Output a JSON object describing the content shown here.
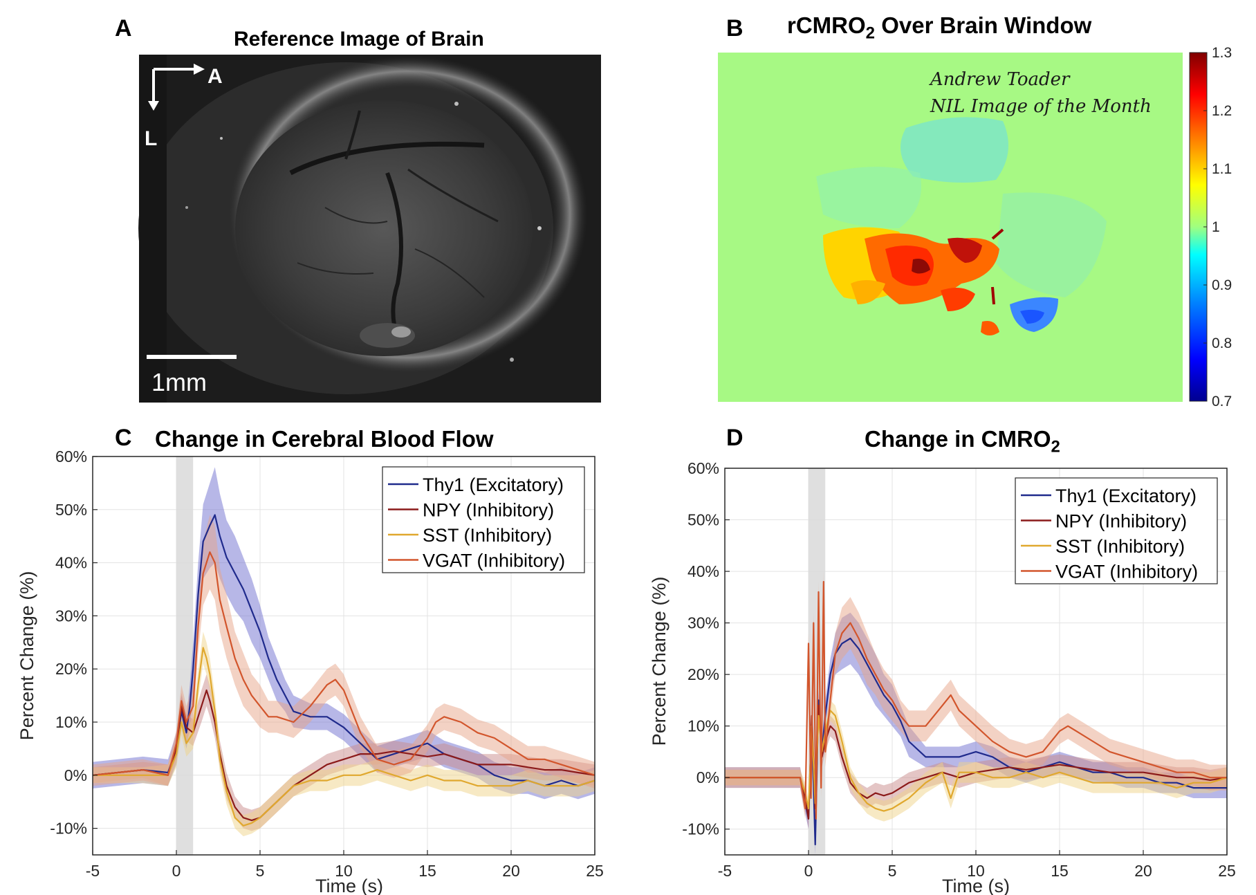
{
  "panels": {
    "a": {
      "letter": "A",
      "title": "Reference Image of Brain",
      "scale_bar": "1mm",
      "orientation": {
        "anterior": "A",
        "lateral": "L"
      }
    },
    "b": {
      "letter": "B",
      "title_main": "rCMRO",
      "title_sub": "2",
      "title_rest": " Over Brain Window",
      "annotation_line1": "Andrew Toader",
      "annotation_line2": "NIL Image of the Month",
      "colorbar": {
        "ticks": [
          "1.3",
          "1.2",
          "1.1",
          "1",
          "0.9",
          "0.8",
          "0.7"
        ],
        "range": [
          0.7,
          1.3
        ],
        "colors": [
          "#00008f",
          "#0000ff",
          "#0080ff",
          "#00ffff",
          "#a0ff80",
          "#ffff00",
          "#ff8000",
          "#ff0000",
          "#800000"
        ]
      }
    },
    "c": {
      "letter": "C"
    },
    "d": {
      "letter": "D"
    }
  },
  "chart_data": [
    {
      "type": "line",
      "title": "Change in Cerebral Blood Flow",
      "xlabel": "Time (s)",
      "ylabel": "Percent Change (%)",
      "xlim": [
        -5,
        25
      ],
      "ylim": [
        -15,
        60
      ],
      "xticks": [
        "-5",
        "0",
        "5",
        "10",
        "15",
        "20",
        "25"
      ],
      "yticks": [
        "-10%",
        "0%",
        "10%",
        "20%",
        "30%",
        "40%",
        "50%",
        "60%"
      ],
      "stimulus_window": [
        0,
        1
      ],
      "grid": true,
      "legend_position": "top-right",
      "series": [
        {
          "name": "Thy1 (Excitatory)",
          "color": "#1f2a8c",
          "band_color": "#6f6fd0",
          "x": [
            -5,
            -2,
            -0.5,
            0,
            0.3,
            0.6,
            0.8,
            1,
            1.3,
            1.6,
            2,
            2.3,
            2.6,
            3,
            3.5,
            4,
            4.5,
            5,
            5.5,
            6,
            6.5,
            7,
            8,
            9,
            10,
            11,
            12,
            13,
            14,
            15,
            16,
            17,
            18,
            19,
            20,
            21,
            22,
            23,
            24,
            25
          ],
          "y": [
            0,
            1,
            0.5,
            5,
            12,
            8,
            13,
            20,
            34,
            44,
            47,
            49,
            45,
            41,
            38,
            35,
            31,
            27,
            22,
            18,
            15,
            12,
            11,
            11,
            9,
            6,
            3,
            4,
            5,
            6,
            4,
            3,
            2,
            0,
            -1,
            -1,
            -2,
            -1,
            -2,
            -1
          ],
          "band": [
            2.5,
            2.5,
            2.5,
            3,
            3,
            3,
            4,
            5,
            6,
            7,
            8,
            9,
            8,
            7,
            7,
            6,
            6,
            5,
            4,
            4,
            3,
            3,
            2.5,
            2.5,
            2.5,
            2.5,
            2.5,
            2.5,
            2.5,
            2.5,
            2.5,
            2.5,
            2.5,
            2.5,
            2.5,
            2.5,
            2.5,
            2.5,
            2.5,
            2.5
          ]
        },
        {
          "name": "NPY (Inhibitory)",
          "color": "#8b1a1a",
          "band_color": "#c98b8b",
          "x": [
            -5,
            -2,
            -0.5,
            0,
            0.3,
            0.6,
            1,
            1.5,
            1.8,
            2,
            2.3,
            2.6,
            3,
            3.5,
            4,
            4.5,
            5,
            6,
            7,
            8,
            9,
            10,
            11,
            12,
            13,
            14,
            15,
            16,
            17,
            18,
            19,
            20,
            21,
            22,
            23,
            24,
            25
          ],
          "y": [
            0,
            1,
            0,
            5,
            13,
            9,
            8,
            13,
            16,
            14,
            10,
            4,
            -2,
            -6,
            -8,
            -8.5,
            -8,
            -5,
            -2,
            0,
            2,
            3,
            4,
            4,
            4.5,
            4,
            3.5,
            4,
            3,
            2,
            2,
            2,
            1.5,
            1,
            1,
            0.5,
            0
          ],
          "band": [
            1.5,
            1.5,
            2,
            2.5,
            2.5,
            2.5,
            2.5,
            3,
            3,
            3,
            3,
            2.5,
            2.5,
            2,
            2,
            2,
            2,
            2,
            2,
            2,
            2,
            2,
            2,
            2,
            2,
            2,
            2,
            2,
            2,
            2,
            2,
            2,
            2,
            2,
            2,
            2,
            2
          ]
        },
        {
          "name": "SST (Inhibitory)",
          "color": "#e0a82e",
          "band_color": "#f0d48a",
          "x": [
            -5,
            -2,
            -0.5,
            0,
            0.3,
            0.6,
            1,
            1.3,
            1.6,
            1.8,
            2,
            2.3,
            2.6,
            3,
            3.5,
            4,
            4.5,
            5,
            6,
            7,
            8,
            9,
            10,
            11,
            12,
            13,
            14,
            15,
            16,
            17,
            18,
            19,
            20,
            21,
            22,
            23,
            24,
            25
          ],
          "y": [
            0,
            0,
            0,
            4,
            10,
            6,
            8,
            17,
            24,
            22,
            19,
            12,
            3,
            -3,
            -8,
            -9.5,
            -9,
            -8,
            -5,
            -2,
            -1,
            -1,
            0,
            0,
            1,
            0,
            -1,
            0,
            -1,
            -1,
            -2,
            -2,
            -2,
            -1,
            -2,
            -2,
            -2,
            -1
          ],
          "band": [
            1.5,
            1.5,
            2,
            2.5,
            2.5,
            2.5,
            3,
            3,
            3,
            3,
            3,
            3,
            2.5,
            2.5,
            2,
            2,
            2,
            2,
            2,
            2,
            2,
            2,
            2,
            2,
            2,
            2,
            2,
            2,
            2,
            2,
            2,
            2,
            2,
            2,
            2,
            2,
            2,
            2
          ]
        },
        {
          "name": "VGAT (Inhibitory)",
          "color": "#d2552c",
          "band_color": "#e8a58a",
          "x": [
            -5,
            -2,
            -0.5,
            0,
            0.3,
            0.6,
            1,
            1.3,
            1.6,
            2,
            2.3,
            2.6,
            3,
            3.5,
            4,
            4.5,
            5,
            5.5,
            6,
            7,
            8,
            9,
            9.5,
            10,
            11,
            12,
            13,
            14,
            15,
            15.5,
            16,
            17,
            18,
            19,
            20,
            21,
            22,
            23,
            24,
            25
          ],
          "y": [
            0,
            1,
            0,
            6,
            14,
            10,
            13,
            28,
            38,
            42,
            40,
            33,
            28,
            22,
            18,
            15,
            13,
            11,
            11,
            10,
            13,
            17,
            18,
            16,
            8,
            3,
            2,
            3,
            7,
            10,
            11,
            10,
            8,
            7,
            5,
            3,
            3,
            2,
            1,
            0
          ],
          "band": [
            2,
            2,
            2,
            2.5,
            3,
            3,
            4,
            5,
            6,
            7,
            7,
            6,
            6,
            5,
            5,
            4,
            4,
            3,
            3,
            3,
            3,
            3,
            3,
            3,
            3,
            2.5,
            2.5,
            2.5,
            2.5,
            2.5,
            2.5,
            2.5,
            2.5,
            2.5,
            2.5,
            2.5,
            2.5,
            2.5,
            2.5,
            2.5
          ]
        }
      ]
    },
    {
      "type": "line",
      "title_main": "Change in CMRO",
      "title_sub": "2",
      "xlabel": "Time (s)",
      "ylabel": "Percent Change (%)",
      "xlim": [
        -5,
        25
      ],
      "ylim": [
        -15,
        60
      ],
      "xticks": [
        "-5",
        "0",
        "5",
        "10",
        "15",
        "20",
        "25"
      ],
      "yticks": [
        "-10%",
        "0%",
        "10%",
        "20%",
        "30%",
        "40%",
        "50%",
        "60%"
      ],
      "stimulus_window": [
        0,
        1
      ],
      "grid": true,
      "legend_position": "top-right",
      "series": [
        {
          "name": "Thy1 (Excitatory)",
          "color": "#1f2a8c",
          "band_color": "#6f6fd0",
          "x": [
            -5,
            -2,
            -0.5,
            -0.2,
            0,
            0.2,
            0.4,
            0.6,
            0.8,
            1,
            1.3,
            1.6,
            2,
            2.5,
            3,
            3.5,
            4,
            4.5,
            5,
            5.5,
            6,
            7,
            8,
            9,
            10,
            11,
            12,
            13,
            14,
            15,
            16,
            17,
            18,
            19,
            20,
            21,
            22,
            23,
            24,
            25
          ],
          "y": [
            0,
            0,
            0,
            -5,
            -8,
            10,
            -13,
            15,
            5,
            12,
            20,
            24,
            26,
            27,
            25,
            22,
            19,
            16,
            14,
            11,
            7,
            4,
            4,
            4,
            5,
            4,
            2,
            1,
            2,
            3,
            2,
            1,
            1,
            0,
            0,
            -1,
            -1,
            -2,
            -2,
            -2
          ],
          "band": [
            2,
            2,
            2,
            2,
            2,
            2,
            2,
            2,
            2,
            3,
            3,
            4,
            5,
            5,
            5,
            5,
            5,
            4,
            4,
            3,
            3,
            2,
            2,
            2,
            2,
            2,
            2,
            2,
            2,
            2,
            2,
            2,
            2,
            2,
            2,
            2,
            2,
            2,
            2,
            2
          ]
        },
        {
          "name": "NPY (Inhibitory)",
          "color": "#8b1a1a",
          "band_color": "#c98b8b",
          "x": [
            -5,
            -2,
            -0.5,
            -0.2,
            0,
            0.2,
            0.4,
            0.6,
            0.8,
            1,
            1.3,
            1.6,
            2,
            2.5,
            3,
            3.5,
            4,
            4.5,
            5,
            6,
            7,
            8,
            9,
            10,
            11,
            12,
            13,
            14,
            15,
            16,
            17,
            18,
            19,
            20,
            21,
            22,
            23,
            24,
            25
          ],
          "y": [
            0,
            0,
            0,
            -4,
            -8,
            12,
            -6,
            14,
            4,
            7,
            10,
            9,
            4,
            -1,
            -3,
            -4,
            -3,
            -3.5,
            -3,
            -1,
            0,
            1,
            0,
            1,
            1.5,
            2,
            1.5,
            2,
            2.5,
            2,
            1.5,
            1,
            1,
            1,
            0.5,
            0,
            0,
            -0.5,
            0
          ],
          "band": [
            1.5,
            1.5,
            1.5,
            2,
            2,
            2,
            2,
            2,
            2,
            2,
            2,
            2,
            2,
            2,
            2,
            2,
            2,
            2,
            2,
            2,
            2,
            2,
            2,
            2,
            2,
            2,
            2,
            2,
            2,
            2,
            2,
            2,
            2,
            2,
            2,
            2,
            2,
            2,
            2
          ]
        },
        {
          "name": "SST (Inhibitory)",
          "color": "#e0a82e",
          "band_color": "#f0d48a",
          "x": [
            -5,
            -2,
            -0.5,
            -0.2,
            0,
            0.2,
            0.4,
            0.6,
            0.8,
            1,
            1.3,
            1.6,
            2,
            2.5,
            3,
            3.5,
            4,
            4.5,
            5,
            5.5,
            6,
            7,
            8,
            8.5,
            9,
            10,
            11,
            12,
            13,
            14,
            15,
            16,
            17,
            18,
            19,
            20,
            21,
            22,
            23,
            24,
            25
          ],
          "y": [
            0,
            0,
            0,
            -3,
            -6,
            10,
            -5,
            12,
            5,
            9,
            13,
            12,
            7,
            0,
            -3,
            -5,
            -6,
            -6.5,
            -6,
            -5,
            -4,
            -1,
            1,
            -4,
            1,
            1,
            0,
            0,
            1,
            0,
            1,
            0,
            -1,
            -1,
            -1,
            -1,
            -1,
            -2,
            -1,
            -1,
            0
          ],
          "band": [
            1.5,
            1.5,
            1.5,
            2,
            2,
            2,
            2,
            2,
            2,
            2,
            2,
            2,
            2,
            2,
            2,
            2,
            2,
            2,
            2,
            2,
            2,
            2,
            2,
            2,
            2,
            2,
            2,
            2,
            2,
            2,
            2,
            2,
            2,
            2,
            2,
            2,
            2,
            2,
            2,
            2,
            2
          ]
        },
        {
          "name": "VGAT (Inhibitory)",
          "color": "#d2552c",
          "band_color": "#e8a58a",
          "x": [
            -5,
            -2,
            -0.5,
            -0.2,
            0,
            0.15,
            0.3,
            0.45,
            0.6,
            0.75,
            0.9,
            1,
            1.3,
            1.6,
            2,
            2.5,
            3,
            3.5,
            4,
            4.5,
            5,
            5.5,
            6,
            7,
            8,
            8.5,
            9,
            10,
            11,
            12,
            13,
            14,
            15,
            15.5,
            16,
            17,
            18,
            19,
            20,
            21,
            22,
            23,
            24,
            25
          ],
          "y": [
            0,
            0,
            0,
            -6,
            26,
            -4,
            30,
            -8,
            36,
            -2,
            38,
            5,
            15,
            24,
            28,
            30,
            27,
            23,
            20,
            17,
            15,
            12,
            10,
            10,
            14,
            16,
            13,
            10,
            7,
            5,
            4,
            5,
            9,
            10,
            9,
            7,
            5,
            4,
            3,
            2,
            1,
            1,
            0,
            0
          ],
          "band": [
            2,
            2,
            2,
            2,
            2,
            2,
            2,
            2,
            2,
            2,
            2,
            3,
            3,
            4,
            5,
            5,
            5,
            5,
            4,
            4,
            4,
            3,
            3,
            3,
            3,
            3,
            3,
            3,
            3,
            2.5,
            2.5,
            2.5,
            2.5,
            2.5,
            2.5,
            2.5,
            2.5,
            2.5,
            2.5,
            2.5,
            2.5,
            2.5,
            2.5,
            2.5
          ]
        }
      ]
    }
  ]
}
